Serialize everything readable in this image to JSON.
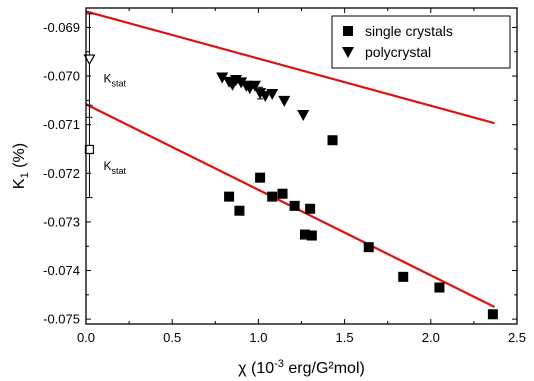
{
  "chart_data": {
    "type": "scatter",
    "xlabel": "χ (10⁻³ erg/G²mol)",
    "xlabel_parts": {
      "prefix": "χ (10",
      "exp": "-3",
      "suffix": " erg/G²mol)"
    },
    "ylabel_parts": {
      "prefix": "K",
      "sub": "1",
      "suffix": " (%)"
    },
    "xlim": [
      0,
      2.5
    ],
    "ylim": [
      -0.0751,
      -0.0686
    ],
    "x_ticks": [
      0.0,
      0.5,
      1.0,
      1.5,
      2.0,
      2.5
    ],
    "x_tick_labels": [
      "0.0",
      "0.5",
      "1.0",
      "1.5",
      "2.0",
      "2.5"
    ],
    "y_ticks": [
      -0.069,
      -0.07,
      -0.071,
      -0.072,
      -0.073,
      -0.074,
      -0.075
    ],
    "y_tick_labels": [
      "-0.069",
      "-0.070",
      "-0.071",
      "-0.072",
      "-0.073",
      "-0.074",
      "-0.075"
    ],
    "grid": false,
    "legend_position": "top-right",
    "series": [
      {
        "name": "single crystals",
        "marker": "square",
        "points": [
          {
            "x": 0.83,
            "y": -0.07248
          },
          {
            "x": 0.89,
            "y": -0.07277,
            "err": 8e-05
          },
          {
            "x": 1.01,
            "y": -0.07209
          },
          {
            "x": 1.08,
            "y": -0.07248
          },
          {
            "x": 1.14,
            "y": -0.07242
          },
          {
            "x": 1.21,
            "y": -0.07267
          },
          {
            "x": 1.27,
            "y": -0.07326
          },
          {
            "x": 1.3,
            "y": -0.07273
          },
          {
            "x": 1.31,
            "y": -0.07328,
            "err": 8e-05
          },
          {
            "x": 1.43,
            "y": -0.07132,
            "err": 8e-05
          },
          {
            "x": 1.64,
            "y": -0.07352
          },
          {
            "x": 1.84,
            "y": -0.07413,
            "err": 5e-05
          },
          {
            "x": 2.05,
            "y": -0.07435,
            "err": 6e-05
          },
          {
            "x": 2.36,
            "y": -0.0749
          }
        ]
      },
      {
        "name": "polycrystal",
        "marker": "triangle-down",
        "points": [
          {
            "x": 0.79,
            "y": -0.07003
          },
          {
            "x": 0.83,
            "y": -0.07012
          },
          {
            "x": 0.85,
            "y": -0.07018
          },
          {
            "x": 0.87,
            "y": -0.07008,
            "err": 6e-05
          },
          {
            "x": 0.9,
            "y": -0.07013
          },
          {
            "x": 0.93,
            "y": -0.0702
          },
          {
            "x": 0.95,
            "y": -0.07025
          },
          {
            "x": 0.98,
            "y": -0.0702
          },
          {
            "x": 1.01,
            "y": -0.07035,
            "err": 0.00012
          },
          {
            "x": 1.04,
            "y": -0.07041
          },
          {
            "x": 1.08,
            "y": -0.07037
          },
          {
            "x": 1.15,
            "y": -0.07051
          },
          {
            "x": 1.26,
            "y": -0.0708
          }
        ]
      }
    ],
    "fit_lines": [
      {
        "color": "#e01010",
        "x": [
          0,
          2.37
        ],
        "y": [
          -0.06867,
          -0.07097
        ]
      },
      {
        "color": "#e01010",
        "x": [
          0,
          2.37
        ],
        "y": [
          -0.07058,
          -0.07475
        ]
      }
    ],
    "annotations": [
      {
        "text_main": "K",
        "text_sub": "stat",
        "marker": "triangle-down-open",
        "x": 0.02,
        "y": -0.06965,
        "err_low": -0.06872,
        "err_high": -0.07085,
        "label_y": -0.07005
      },
      {
        "text_main": "K",
        "text_sub": "stat",
        "marker": "square-open",
        "x": 0.02,
        "y": -0.07151,
        "err_low": -0.0706,
        "err_high": -0.0725,
        "label_y": -0.07185
      }
    ],
    "colors": {
      "data": "#000000",
      "fit": "#e01010",
      "frame": "#000000"
    }
  }
}
